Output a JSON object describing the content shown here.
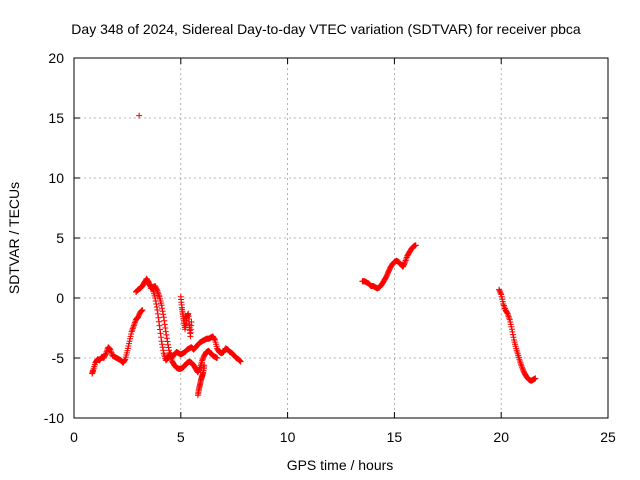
{
  "chart_data": {
    "type": "scatter",
    "title": "Day 348 of 2024, Sidereal Day-to-day VTEC variation (SDTVAR) for receiver pbca",
    "xlabel": "GPS time / hours",
    "ylabel": "SDTVAR / TECUs",
    "xlim": [
      0,
      25
    ],
    "ylim": [
      -10,
      20
    ],
    "xticks": [
      0,
      5,
      10,
      15,
      20,
      25
    ],
    "yticks": [
      -10,
      -5,
      0,
      5,
      10,
      15,
      20
    ],
    "grid": true,
    "marker": "+",
    "color": "#ff0000",
    "series": [
      {
        "name": "trace-1",
        "x": [
          0.85,
          0.9,
          1.0,
          1.1,
          1.2,
          1.3,
          1.4,
          1.5,
          1.6,
          1.7,
          1.8,
          1.9,
          2.0,
          2.1,
          2.2,
          2.3,
          2.4,
          2.5,
          2.6,
          2.7,
          2.8,
          2.9,
          3.0,
          3.1,
          3.2
        ],
        "y": [
          -6.3,
          -6.0,
          -5.4,
          -5.1,
          -5.2,
          -4.9,
          -5.0,
          -4.6,
          -4.1,
          -4.3,
          -4.8,
          -4.9,
          -5.0,
          -5.1,
          -5.2,
          -5.4,
          -5.1,
          -4.4,
          -3.6,
          -2.8,
          -2.3,
          -1.8,
          -1.6,
          -1.2,
          -1.0
        ]
      },
      {
        "name": "trace-2",
        "x": [
          2.9,
          3.0,
          3.1,
          3.2,
          3.3,
          3.4,
          3.5,
          3.6,
          3.7,
          3.8,
          3.9,
          4.0,
          4.1,
          4.2,
          4.3,
          4.4,
          4.5,
          4.6,
          4.7,
          4.8,
          4.9,
          5.0,
          5.1,
          5.2,
          5.3,
          5.4,
          5.5,
          5.6,
          5.7,
          5.8,
          5.9,
          6.0,
          6.1,
          6.2,
          6.3,
          6.4,
          6.5,
          6.6,
          6.7
        ],
        "y": [
          0.5,
          0.7,
          0.8,
          1.0,
          1.3,
          1.6,
          1.3,
          0.8,
          0.9,
          1.0,
          0.6,
          0.1,
          -0.6,
          -1.6,
          -2.8,
          -3.9,
          -4.8,
          -5.3,
          -5.6,
          -5.8,
          -5.9,
          -5.9,
          -5.8,
          -5.6,
          -5.4,
          -5.3,
          -5.4,
          -5.6,
          -5.9,
          -6.2,
          -5.8,
          -5.2,
          -4.8,
          -4.5,
          -4.4,
          -4.6,
          -4.8,
          -4.9,
          -5.0
        ]
      },
      {
        "name": "trace-3",
        "x": [
          3.5,
          3.6,
          3.7,
          3.8,
          3.9,
          4.0,
          4.1,
          4.2,
          4.3,
          4.4,
          4.5,
          4.6,
          4.7,
          4.8,
          4.9,
          5.0,
          5.1,
          5.2,
          5.3,
          5.4,
          5.5,
          5.6,
          5.7,
          5.8,
          5.9,
          6.0,
          6.1,
          6.2,
          6.3,
          6.4,
          6.5,
          6.6,
          6.7,
          6.8,
          6.9,
          7.0,
          7.1,
          7.2,
          7.3,
          7.4,
          7.5,
          7.6,
          7.7,
          7.8
        ],
        "y": [
          1.2,
          1.0,
          0.7,
          0.0,
          -1.0,
          -2.3,
          -3.6,
          -4.6,
          -5.2,
          -5.0,
          -4.6,
          -4.9,
          -4.7,
          -4.5,
          -4.6,
          -4.7,
          -4.6,
          -4.5,
          -4.3,
          -4.2,
          -4.1,
          -4.3,
          -4.1,
          -3.9,
          -3.7,
          -3.6,
          -3.5,
          -3.4,
          -3.4,
          -3.3,
          -3.2,
          -3.5,
          -4.2,
          -4.5,
          -4.6,
          -4.5,
          -4.2,
          -4.3,
          -4.5,
          -4.6,
          -4.8,
          -5.0,
          -5.1,
          -5.3
        ]
      },
      {
        "name": "trace-4",
        "x": [
          5.0,
          5.05,
          5.1,
          5.15,
          5.2,
          5.25,
          5.3,
          5.35,
          5.4,
          5.45,
          5.5
        ],
        "y": [
          0.1,
          -0.8,
          -1.4,
          -2.0,
          -2.6,
          -2.0,
          -1.5,
          -1.3,
          -2.2,
          -3.2,
          -2.0
        ]
      },
      {
        "name": "trace-5",
        "x": [
          5.8,
          5.85,
          5.9,
          5.95,
          6.0,
          6.05,
          6.1
        ],
        "y": [
          -8.1,
          -7.6,
          -7.2,
          -6.8,
          -6.5,
          -6.2,
          -5.6
        ]
      },
      {
        "name": "trace-6",
        "x": [
          13.5,
          13.6,
          13.7,
          13.8,
          13.9,
          14.0,
          14.1,
          14.2,
          14.3,
          14.4,
          14.5,
          14.6,
          14.7,
          14.8,
          14.9,
          15.0,
          15.1,
          15.2,
          15.3,
          15.4,
          15.5,
          15.6,
          15.7,
          15.8,
          15.9,
          16.0
        ],
        "y": [
          1.4,
          1.4,
          1.3,
          1.2,
          1.0,
          1.0,
          0.9,
          0.8,
          0.9,
          1.1,
          1.4,
          1.7,
          2.1,
          2.5,
          2.8,
          3.0,
          3.1,
          3.0,
          2.8,
          2.6,
          3.0,
          3.5,
          3.8,
          4.1,
          4.3,
          4.4
        ]
      },
      {
        "name": "trace-7",
        "x": [
          19.9,
          20.0,
          20.1,
          20.2,
          20.3,
          20.4,
          20.5,
          20.6,
          20.7,
          20.8,
          20.9,
          21.0,
          21.1,
          21.2,
          21.3,
          21.4,
          21.5,
          21.6
        ],
        "y": [
          0.7,
          0.3,
          -0.5,
          -1.0,
          -1.3,
          -1.8,
          -2.6,
          -3.5,
          -4.2,
          -4.8,
          -5.4,
          -5.9,
          -6.3,
          -6.6,
          -6.8,
          -6.9,
          -6.8,
          -6.7
        ]
      },
      {
        "name": "outlier",
        "x": [
          3.05
        ],
        "y": [
          15.2
        ]
      }
    ]
  }
}
